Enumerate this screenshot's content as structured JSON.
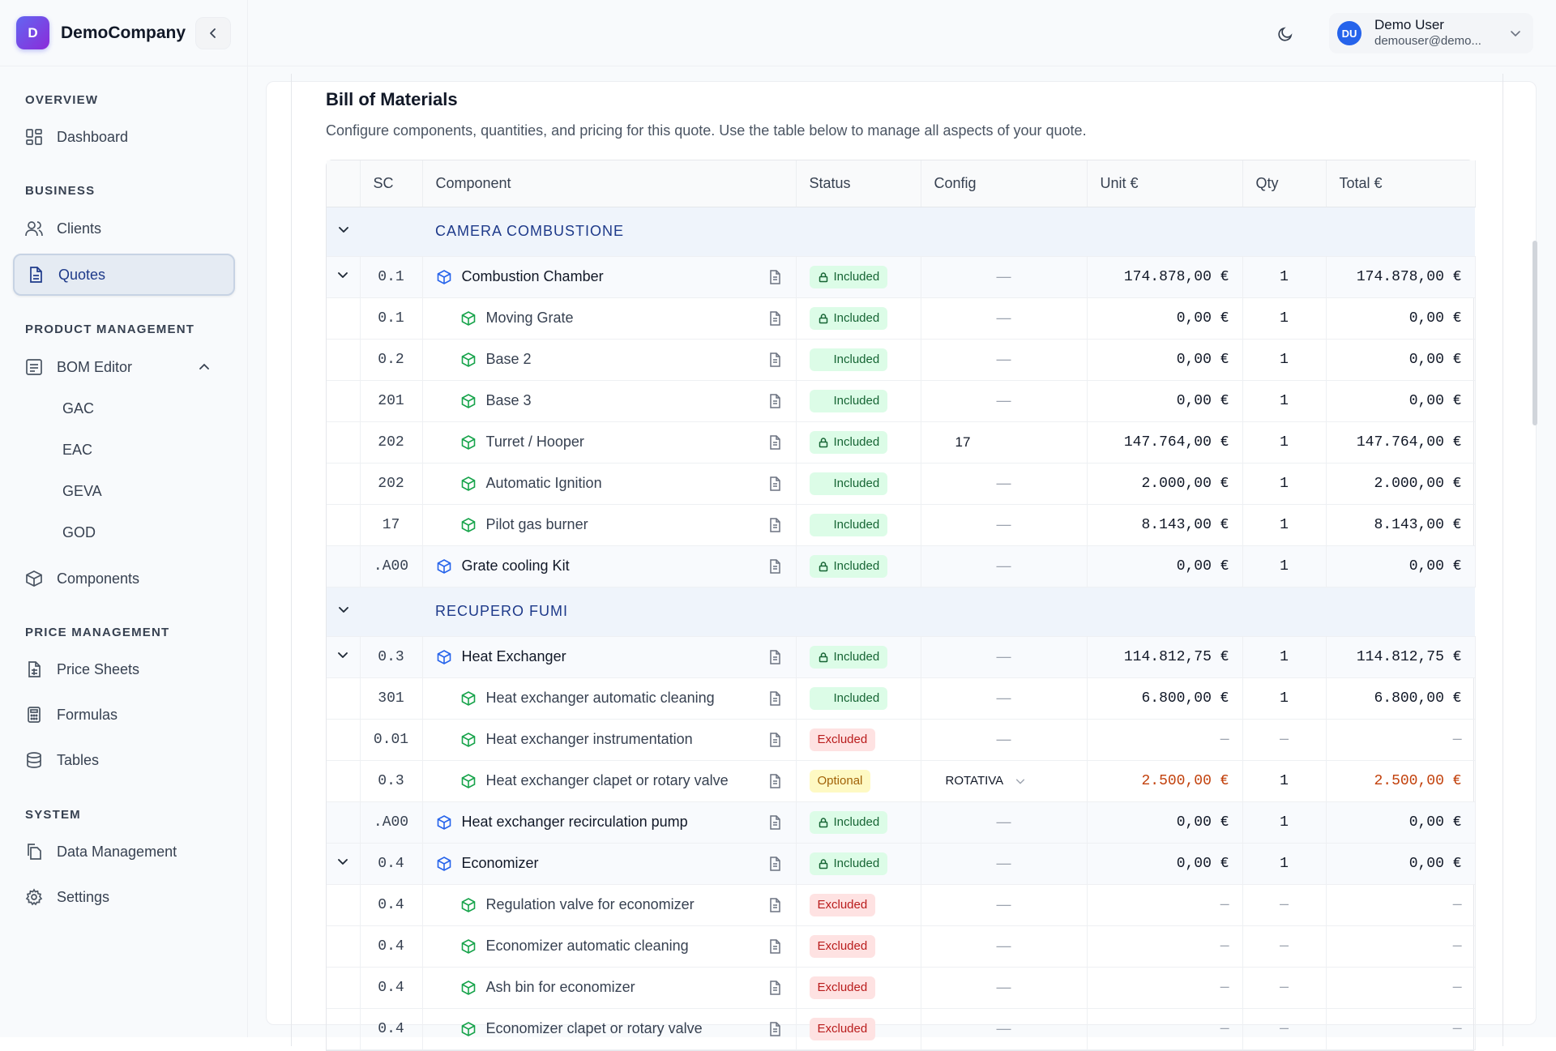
{
  "brand": {
    "initial": "D",
    "name": "DemoCompany"
  },
  "user": {
    "initials": "DU",
    "name": "Demo User",
    "email": "demouser@demo..."
  },
  "sidebar": {
    "sections": [
      {
        "title": "OVERVIEW"
      },
      {
        "title": "BUSINESS"
      },
      {
        "title": "PRODUCT MANAGEMENT"
      },
      {
        "title": "PRICE MANAGEMENT"
      },
      {
        "title": "SYSTEM"
      }
    ],
    "items": {
      "dashboard": "Dashboard",
      "clients": "Clients",
      "quotes": "Quotes",
      "bom_editor": "BOM Editor",
      "gac": "GAC",
      "eac": "EAC",
      "geva": "GEVA",
      "god": "GOD",
      "components": "Components",
      "price_sheets": "Price Sheets",
      "formulas": "Formulas",
      "tables": "Tables",
      "data_management": "Data Management",
      "settings": "Settings"
    },
    "active": "quotes"
  },
  "main": {
    "title": "Bill of Materials",
    "description": "Configure components, quantities, and pricing for this quote. Use the table below to manage all aspects of your quote."
  },
  "table": {
    "columns": [
      "",
      "SC",
      "Component",
      "Status",
      "Config",
      "Unit €",
      "Qty",
      "Total €"
    ],
    "rows": [
      {
        "type": "group",
        "title": "CAMERA COMBUSTIONE"
      },
      {
        "type": "parent",
        "expand": true,
        "sc": "0.1",
        "name": "Combustion Chamber",
        "status": "Included",
        "lock": true,
        "config": "—",
        "unit": "174.878,00 €",
        "qty": "1",
        "total": "174.878,00 €"
      },
      {
        "type": "child",
        "sc": "0.1",
        "name": "Moving Grate",
        "status": "Included",
        "lock": true,
        "config": "—",
        "unit": "0,00 €",
        "qty": "1",
        "total": "0,00 €"
      },
      {
        "type": "child",
        "sc": "0.2",
        "name": "Base 2",
        "status": "Included",
        "lock": false,
        "config": "—",
        "unit": "0,00 €",
        "qty": "1",
        "total": "0,00 €"
      },
      {
        "type": "child",
        "sc": "201",
        "name": "Base 3",
        "status": "Included",
        "lock": false,
        "config": "—",
        "unit": "0,00 €",
        "qty": "1",
        "total": "0,00 €"
      },
      {
        "type": "child",
        "sc": "202",
        "name": "Turret / Hooper",
        "status": "Included",
        "lock": true,
        "config": "17",
        "configType": "text",
        "unit": "147.764,00 €",
        "qty": "1",
        "total": "147.764,00 €"
      },
      {
        "type": "child",
        "sc": "202",
        "name": "Automatic Ignition",
        "status": "Included",
        "lock": false,
        "config": "—",
        "unit": "2.000,00 €",
        "qty": "1",
        "total": "2.000,00 €"
      },
      {
        "type": "child",
        "sc": "17",
        "name": "Pilot gas burner",
        "status": "Included",
        "lock": false,
        "config": "—",
        "unit": "8.143,00 €",
        "qty": "1",
        "total": "8.143,00 €"
      },
      {
        "type": "parent",
        "expand": false,
        "sc": ".A00",
        "name": "Grate cooling Kit",
        "status": "Included",
        "lock": true,
        "config": "—",
        "unit": "0,00 €",
        "qty": "1",
        "total": "0,00 €"
      },
      {
        "type": "group",
        "title": "RECUPERO FUMI"
      },
      {
        "type": "parent",
        "expand": true,
        "sc": "0.3",
        "name": "Heat Exchanger",
        "status": "Included",
        "lock": true,
        "config": "—",
        "unit": "114.812,75 €",
        "qty": "1",
        "total": "114.812,75 €"
      },
      {
        "type": "child",
        "sc": "301",
        "name": "Heat exchanger automatic cleaning",
        "status": "Included",
        "lock": false,
        "config": "—",
        "unit": "6.800,00 €",
        "qty": "1",
        "total": "6.800,00 €"
      },
      {
        "type": "child",
        "sc": "0.01",
        "name": "Heat exchanger instrumentation",
        "status": "Excluded",
        "lock": false,
        "config": "—",
        "unit": "—",
        "qty": "—",
        "total": "—"
      },
      {
        "type": "child",
        "sc": "0.3",
        "name": "Heat exchanger clapet or rotary valve",
        "status": "Optional",
        "lock": false,
        "config": "ROTATIVA",
        "configType": "select",
        "unit": "2.500,00 €",
        "qty": "1",
        "total": "2.500,00 €",
        "highlight": true
      },
      {
        "type": "parent",
        "expand": false,
        "sc": ".A00",
        "name": "Heat exchanger recirculation pump",
        "status": "Included",
        "lock": true,
        "config": "—",
        "unit": "0,00 €",
        "qty": "1",
        "total": "0,00 €"
      },
      {
        "type": "parent",
        "expand": true,
        "sc": "0.4",
        "name": "Economizer",
        "status": "Included",
        "lock": true,
        "config": "—",
        "unit": "0,00 €",
        "qty": "1",
        "total": "0,00 €"
      },
      {
        "type": "child",
        "sc": "0.4",
        "name": "Regulation valve for economizer",
        "status": "Excluded",
        "lock": false,
        "config": "—",
        "unit": "—",
        "qty": "—",
        "total": "—"
      },
      {
        "type": "child",
        "sc": "0.4",
        "name": "Economizer automatic cleaning",
        "status": "Excluded",
        "lock": false,
        "config": "—",
        "unit": "—",
        "qty": "—",
        "total": "—"
      },
      {
        "type": "child",
        "sc": "0.4",
        "name": "Ash bin for economizer",
        "status": "Excluded",
        "lock": false,
        "config": "—",
        "unit": "—",
        "qty": "—",
        "total": "—"
      },
      {
        "type": "child",
        "sc": "0.4",
        "name": "Economizer clapet or rotary valve",
        "status": "Excluded",
        "lock": false,
        "config": "—",
        "unit": "—",
        "qty": "—",
        "total": "—"
      }
    ]
  },
  "colors": {
    "accent": "#1e3a8a",
    "included": "#166534",
    "excluded": "#b91c1c",
    "optional": "#a16207",
    "price_highlight": "#c2410c"
  }
}
